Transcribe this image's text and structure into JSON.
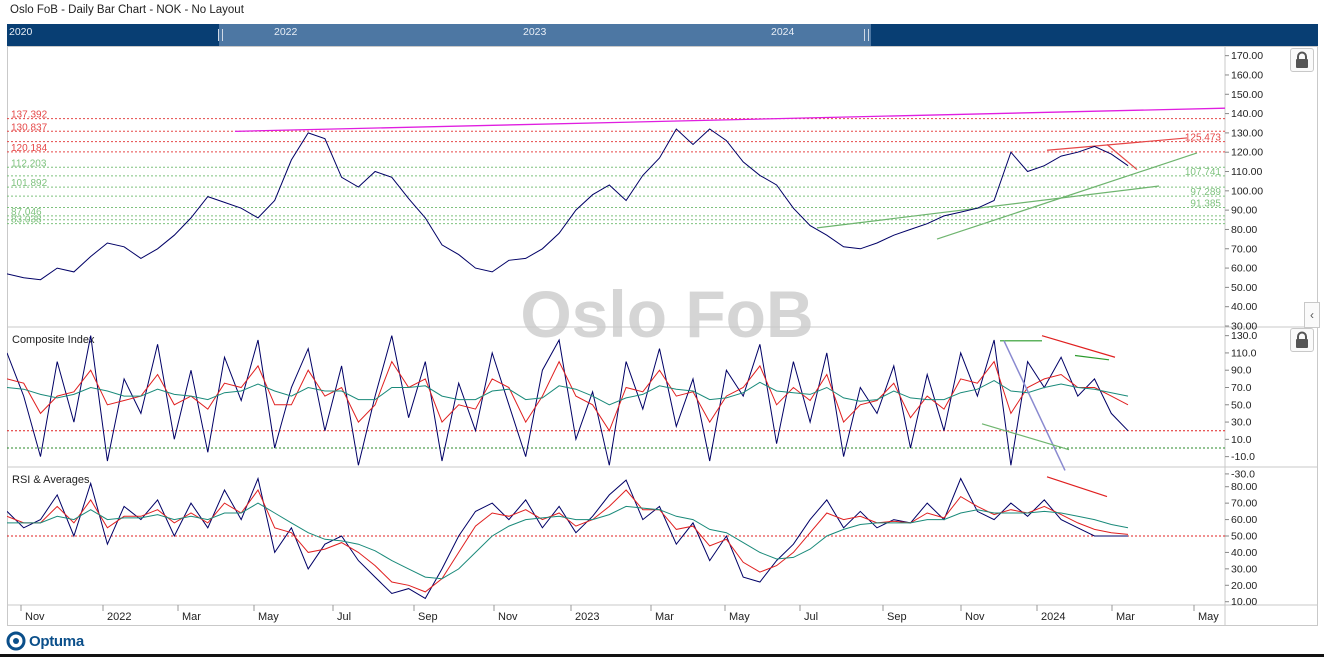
{
  "window": {
    "title": "Oslo FoB - Daily Bar Chart - NOK - No Layout"
  },
  "navigator": {
    "years": [
      "2020",
      "2022",
      "2023",
      "2024"
    ]
  },
  "watermark": "Oslo FoB",
  "panels": {
    "composite_title": "Composite Index",
    "rsi_title": "RSI & Averages"
  },
  "brand": {
    "name": "Optuma"
  },
  "colors": {
    "price": "#000066",
    "red": "#e02020",
    "teal": "#1a8a7a",
    "resistance": "#e54848",
    "support": "#7ec27e",
    "magenta": "#e01ee0",
    "nav_bg": "#083e73",
    "nav_window": "#4d77a3"
  },
  "icons": {
    "lock": "lock-icon",
    "collapse": "chevron-left-icon"
  },
  "chart_data": [
    {
      "type": "line",
      "panel": "price",
      "title": "",
      "ylim": [
        30,
        175
      ],
      "y_ticks": [
        "170.00",
        "160.00",
        "150.00",
        "140.00",
        "130.00",
        "120.00",
        "110.00",
        "100.00",
        "90.00",
        "80.00",
        "70.00",
        "60.00",
        "50.00",
        "40.00",
        "30.00"
      ],
      "x_labels": [
        "Nov",
        "2022",
        "Mar",
        "May",
        "Jul",
        "Sep",
        "Nov",
        "2023",
        "Mar",
        "May",
        "Jul",
        "Sep",
        "Nov",
        "2024",
        "Mar",
        "May"
      ],
      "series": [
        {
          "values": [
            57,
            55,
            54,
            60,
            58,
            66,
            73,
            71,
            65,
            70,
            77,
            86,
            97,
            94,
            91,
            86,
            95,
            116,
            130,
            127,
            107,
            102,
            110,
            107,
            96,
            86,
            72,
            67,
            60,
            58,
            64,
            65,
            70,
            78,
            90,
            98,
            103,
            95,
            108,
            117,
            132,
            124,
            132,
            126,
            115,
            108,
            103,
            91,
            82,
            77,
            71,
            70,
            73,
            77,
            80,
            83,
            87,
            89,
            91,
            95,
            120,
            110,
            113,
            118,
            120,
            123,
            119,
            113
          ]
        }
      ],
      "levels": [
        {
          "label": "137.392",
          "value": 137.392,
          "kind": "resistance"
        },
        {
          "label": "130.837",
          "value": 130.837,
          "kind": "resistance"
        },
        {
          "label": "120.184",
          "value": 120.184,
          "kind": "resistance"
        },
        {
          "label": "112.203",
          "value": 112.203,
          "kind": "support"
        },
        {
          "label": "101.892",
          "value": 101.892,
          "kind": "support"
        },
        {
          "label": "87.046",
          "value": 87.046,
          "kind": "support"
        },
        {
          "label": "83.038",
          "value": 83.038,
          "kind": "support"
        }
      ],
      "level_grid": [
        137.392,
        130.837,
        125.473,
        120.184,
        112.203,
        107.741,
        101.892,
        97.289,
        91.385,
        87.046,
        85,
        83.038
      ],
      "right_labels": [
        {
          "label": "125.473",
          "value": 125.473,
          "kind": "resistance"
        },
        {
          "label": "107.741",
          "value": 107.741,
          "kind": "support"
        },
        {
          "label": "97.289",
          "value": 97.289,
          "kind": "support"
        },
        {
          "label": "91.385",
          "value": 91.385,
          "kind": "support"
        }
      ]
    },
    {
      "type": "line",
      "panel": "composite",
      "title": "Composite Index",
      "ylim": [
        -22,
        140
      ],
      "y_ticks": [
        "130.0",
        "110.0",
        "90.0",
        "70.0",
        "50.0",
        "30.0",
        "10.0",
        "-10.0",
        "-30.0"
      ],
      "reference_lines": [
        20,
        0
      ],
      "series": [
        {
          "values": [
            110,
            60,
            -10,
            100,
            30,
            130,
            -15,
            80,
            40,
            120,
            10,
            90,
            -5,
            105,
            55,
            125,
            0,
            70,
            115,
            20,
            95,
            -20,
            60,
            130,
            35,
            100,
            -15,
            75,
            20,
            110,
            50,
            -10,
            90,
            125,
            10,
            65,
            -20,
            100,
            45,
            115,
            25,
            80,
            -15,
            90,
            60,
            120,
            5,
            100,
            30,
            110,
            -10,
            70,
            40,
            95,
            0,
            85,
            20,
            110,
            60,
            125,
            -20,
            100,
            70,
            105,
            60,
            80,
            40,
            20
          ]
        },
        {
          "values": [
            80,
            75,
            40,
            60,
            65,
            90,
            50,
            55,
            60,
            85,
            50,
            60,
            45,
            75,
            70,
            95,
            50,
            50,
            90,
            60,
            70,
            30,
            50,
            100,
            70,
            80,
            30,
            50,
            45,
            80,
            70,
            30,
            60,
            100,
            60,
            50,
            20,
            70,
            65,
            90,
            60,
            65,
            30,
            60,
            70,
            95,
            50,
            70,
            55,
            85,
            30,
            50,
            55,
            75,
            35,
            60,
            45,
            80,
            75,
            100,
            40,
            70,
            80,
            85,
            70,
            70,
            60,
            50
          ]
        },
        {
          "values": [
            70,
            68,
            62,
            58,
            62,
            70,
            66,
            60,
            60,
            68,
            62,
            60,
            56,
            64,
            66,
            74,
            66,
            60,
            70,
            66,
            66,
            56,
            56,
            70,
            70,
            72,
            60,
            56,
            56,
            66,
            68,
            56,
            58,
            72,
            68,
            60,
            50,
            58,
            62,
            72,
            68,
            66,
            56,
            58,
            64,
            76,
            66,
            64,
            62,
            70,
            58,
            54,
            56,
            66,
            58,
            56,
            56,
            64,
            68,
            78,
            66,
            64,
            70,
            74,
            70,
            68,
            64,
            60
          ]
        }
      ]
    },
    {
      "type": "line",
      "panel": "rsi",
      "title": "RSI & Averages",
      "ylim": [
        8,
        92
      ],
      "y_ticks": [
        "80.00",
        "70.00",
        "60.00",
        "50.00",
        "40.00",
        "30.00",
        "20.00",
        "10.00"
      ],
      "reference_lines": [
        50
      ],
      "series": [
        {
          "values": [
            65,
            55,
            60,
            75,
            50,
            82,
            45,
            68,
            60,
            72,
            50,
            70,
            55,
            78,
            60,
            85,
            40,
            55,
            30,
            45,
            50,
            35,
            25,
            15,
            18,
            12,
            30,
            50,
            65,
            70,
            60,
            72,
            55,
            68,
            52,
            62,
            75,
            84,
            60,
            68,
            45,
            58,
            35,
            50,
            25,
            22,
            35,
            45,
            60,
            72,
            55,
            65,
            55,
            60,
            58,
            70,
            60,
            85,
            65,
            60,
            70,
            62,
            72,
            60,
            55,
            50,
            50,
            50
          ]
        },
        {
          "values": [
            62,
            58,
            58,
            68,
            58,
            72,
            55,
            62,
            62,
            66,
            58,
            64,
            58,
            70,
            64,
            78,
            55,
            52,
            40,
            42,
            46,
            40,
            32,
            22,
            20,
            16,
            24,
            40,
            56,
            64,
            62,
            66,
            60,
            64,
            56,
            60,
            68,
            78,
            66,
            66,
            54,
            56,
            44,
            48,
            34,
            28,
            32,
            40,
            52,
            64,
            60,
            62,
            58,
            59,
            58,
            64,
            61,
            74,
            68,
            63,
            66,
            64,
            68,
            63,
            58,
            54,
            52,
            51
          ]
        },
        {
          "values": [
            58,
            58,
            58,
            62,
            60,
            66,
            60,
            61,
            61,
            63,
            60,
            62,
            60,
            64,
            64,
            70,
            64,
            58,
            52,
            48,
            47,
            45,
            41,
            35,
            30,
            25,
            24,
            30,
            40,
            50,
            56,
            60,
            61,
            62,
            60,
            60,
            63,
            68,
            67,
            66,
            62,
            60,
            54,
            52,
            46,
            40,
            36,
            37,
            42,
            50,
            54,
            57,
            58,
            58,
            58,
            60,
            60,
            64,
            66,
            64,
            64,
            64,
            65,
            64,
            62,
            60,
            57,
            55
          ]
        }
      ]
    }
  ]
}
